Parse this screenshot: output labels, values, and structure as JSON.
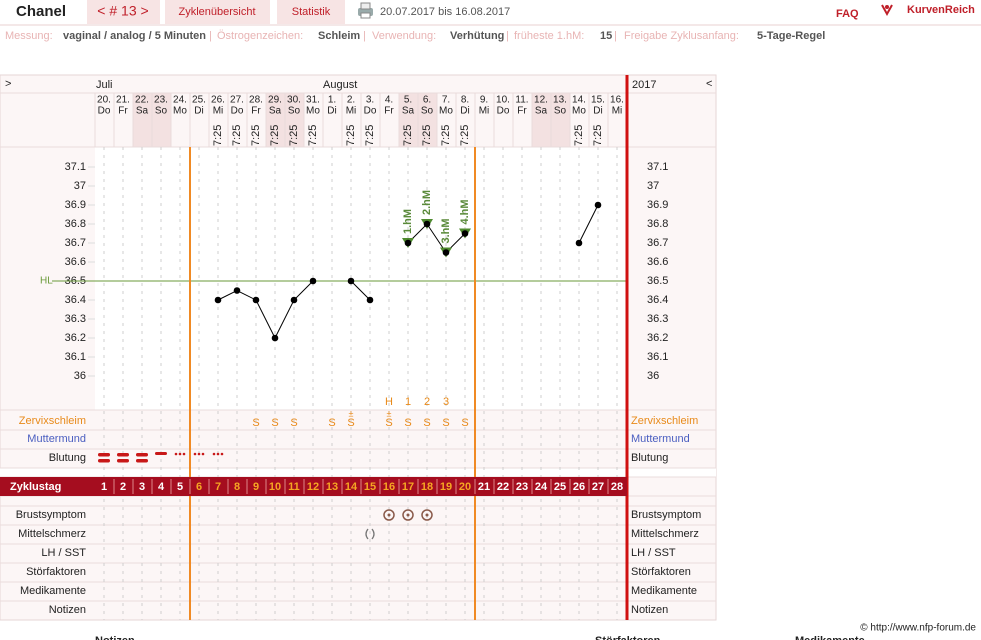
{
  "header": {
    "name": "Chanel",
    "cycle": "< # 13 >",
    "tabs": [
      "Zyklenübersicht",
      "Statistik"
    ],
    "range": "20.07.2017 bis 16.08.2017",
    "faq": "FAQ",
    "logo": "KurvenReich"
  },
  "info": {
    "separator": "|",
    "items": [
      {
        "label": "Messung:",
        "value": "vaginal / analog / 5 Minuten"
      },
      {
        "label": "Östrogenzeichen:",
        "value": "Schleim"
      },
      {
        "label": "Verwendung:",
        "value": "Verhütung"
      },
      {
        "label": "früheste 1.hM:",
        "value": "15"
      },
      {
        "label": "Freigabe Zyklusanfang:",
        "value": "5-Tage-Regel"
      }
    ]
  },
  "nav": {
    "left": ">",
    "right": "<",
    "year": "2017",
    "months": [
      "Juli",
      "August"
    ]
  },
  "chart_data": {
    "type": "line",
    "categories": [
      "20.",
      "21.",
      "22.",
      "23.",
      "24.",
      "25.",
      "26.",
      "27.",
      "28.",
      "29.",
      "30.",
      "31.",
      "1.",
      "2.",
      "3.",
      "4.",
      "5.",
      "6.",
      "7.",
      "8.",
      "9.",
      "10.",
      "11.",
      "12.",
      "13.",
      "14.",
      "15.",
      "16."
    ],
    "weekdays": [
      "Do",
      "Fr",
      "Sa",
      "So",
      "Mo",
      "Di",
      "Mi",
      "Do",
      "Fr",
      "Sa",
      "So",
      "Mo",
      "Di",
      "Mi",
      "Do",
      "Fr",
      "Sa",
      "So",
      "Mo",
      "Di",
      "Mi",
      "Do",
      "Fr",
      "Sa",
      "So",
      "Mo",
      "Di",
      "Mi"
    ],
    "times": [
      null,
      null,
      null,
      null,
      null,
      null,
      "7:25",
      "7:25",
      "7:25",
      "7:25",
      "7:25",
      "7:25",
      null,
      "7:25",
      "7:25",
      null,
      "7:25",
      "7:25",
      "7:25",
      "7:25",
      null,
      null,
      null,
      null,
      null,
      "7:25",
      "7:25",
      null
    ],
    "series": [
      {
        "color": "#000000",
        "values": [
          null,
          null,
          null,
          null,
          null,
          null,
          36.4,
          36.45,
          36.4,
          36.2,
          36.4,
          36.5,
          null,
          36.5,
          36.4,
          null,
          36.7,
          36.8,
          36.65,
          36.75,
          null,
          null,
          null,
          null,
          null,
          36.7,
          36.9,
          null
        ]
      }
    ],
    "annotations": [
      null,
      null,
      null,
      null,
      null,
      null,
      null,
      null,
      null,
      null,
      null,
      null,
      null,
      null,
      null,
      null,
      "1.hM",
      "2.hM",
      "3.hM",
      "4.hM",
      null,
      null,
      null,
      null,
      null,
      null,
      null,
      null
    ],
    "coverline": {
      "label": "HL",
      "value": 36.5,
      "color": "#6a9a3a"
    },
    "ylim": [
      35.8,
      37.2
    ],
    "yticks": [
      36,
      36.1,
      36.2,
      36.3,
      36.4,
      36.5,
      36.6,
      36.7,
      36.8,
      36.9,
      37,
      37.1
    ],
    "peak_labels": [
      null,
      null,
      null,
      null,
      null,
      null,
      null,
      null,
      null,
      null,
      null,
      null,
      null,
      null,
      null,
      "H",
      "1",
      "2",
      "3",
      null,
      null,
      null,
      null,
      null,
      null,
      null,
      null,
      null
    ],
    "cervix": [
      null,
      null,
      null,
      null,
      null,
      null,
      null,
      null,
      "S",
      "S",
      "S",
      null,
      "S",
      "S",
      null,
      "S",
      "S",
      "S",
      "S",
      "S",
      null,
      null,
      null,
      null,
      null,
      null,
      null,
      null
    ],
    "cervix_top": [
      null,
      null,
      null,
      null,
      null,
      null,
      null,
      null,
      null,
      null,
      null,
      null,
      null,
      "±",
      null,
      "±",
      null,
      null,
      null,
      null,
      null,
      null,
      null,
      null,
      null,
      null,
      null,
      null
    ],
    "cycle_days": [
      1,
      2,
      3,
      4,
      5,
      6,
      7,
      8,
      9,
      10,
      11,
      12,
      13,
      14,
      15,
      16,
      17,
      18,
      19,
      20,
      21,
      22,
      23,
      24,
      25,
      26,
      27,
      28
    ]
  },
  "rows": {
    "zervix": "Zervixschleim",
    "muttermund": "Muttermund",
    "blutung": "Blutung",
    "zyklustag": "Zyklustag",
    "lower": [
      "Brustsymptom",
      "Mittelschmerz",
      "LH / SST",
      "Störfaktoren",
      "Medikamente",
      "Notizen"
    ]
  },
  "footer": {
    "copyright": "© http://www.nfp-forum.de",
    "below": [
      "Notizen",
      "Störfaktoren",
      "Medikamente"
    ]
  }
}
